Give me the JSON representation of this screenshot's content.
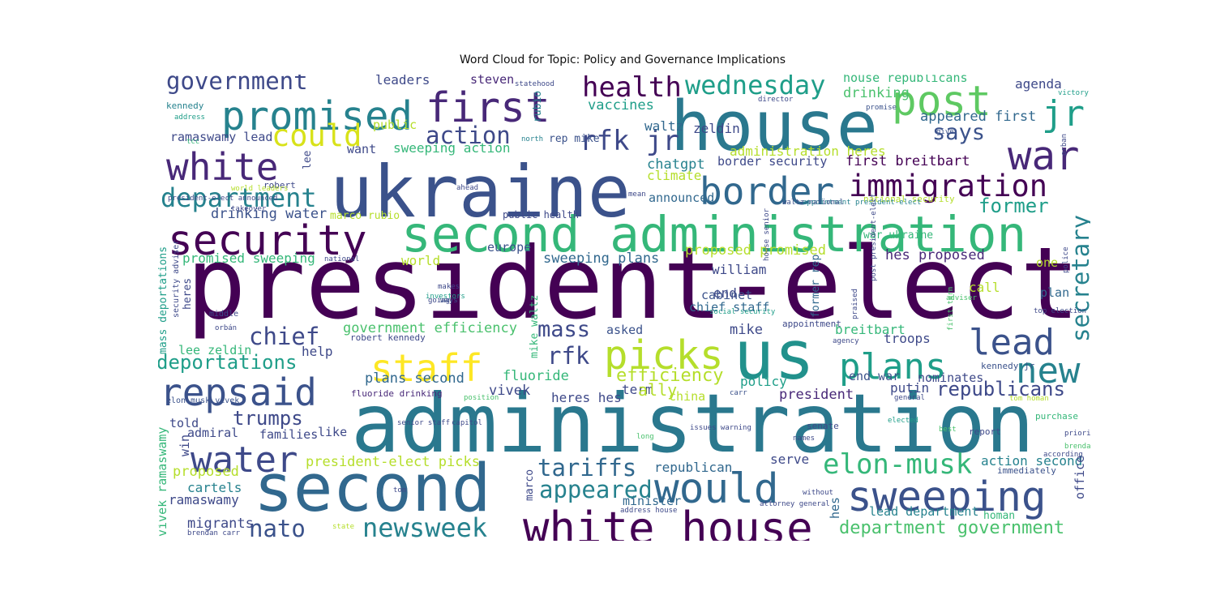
{
  "title": "Word Cloud for Topic: Policy and Governance Implications",
  "chart_data": {
    "type": "wordcloud",
    "title": "Word Cloud for Topic: Policy and Governance Implications",
    "colormap": "viridis",
    "background": "#ffffff",
    "words": [
      {
        "text": "president-elect",
        "weight": 100,
        "color": "#440154"
      },
      {
        "text": "administration",
        "weight": 82,
        "color": "#2a788e"
      },
      {
        "text": "ukraine",
        "weight": 72,
        "color": "#3b528b"
      },
      {
        "text": "house",
        "weight": 70,
        "color": "#2a788e"
      },
      {
        "text": "us",
        "weight": 68,
        "color": "#21918c"
      },
      {
        "text": "second",
        "weight": 66,
        "color": "#31688e"
      },
      {
        "text": "second administration",
        "weight": 50,
        "color": "#35b779"
      },
      {
        "text": "white house",
        "weight": 44,
        "color": "#440154"
      },
      {
        "text": "sweeping",
        "weight": 42,
        "color": "#3b528b"
      },
      {
        "text": "security",
        "weight": 42,
        "color": "#440154"
      },
      {
        "text": "first",
        "weight": 42,
        "color": "#482878"
      },
      {
        "text": "post",
        "weight": 42,
        "color": "#5ec962"
      },
      {
        "text": "would",
        "weight": 42,
        "color": "#31688e"
      },
      {
        "text": "promised",
        "weight": 40,
        "color": "#26828e"
      },
      {
        "text": "war",
        "weight": 40,
        "color": "#482878"
      },
      {
        "text": "picks",
        "weight": 40,
        "color": "#b5de2b"
      },
      {
        "text": "staff",
        "weight": 38,
        "color": "#fde725"
      },
      {
        "text": "border",
        "weight": 38,
        "color": "#31688e"
      },
      {
        "text": "white",
        "weight": 38,
        "color": "#482878"
      },
      {
        "text": "repsaid",
        "weight": 38,
        "color": "#3b528b"
      },
      {
        "text": "water",
        "weight": 36,
        "color": "#3e4989"
      },
      {
        "text": "plans",
        "weight": 36,
        "color": "#1f9e89"
      },
      {
        "text": "lead",
        "weight": 36,
        "color": "#3b528b"
      },
      {
        "text": "new",
        "weight": 36,
        "color": "#26828e"
      },
      {
        "text": "jr",
        "weight": 36,
        "color": "#1f9e89"
      },
      {
        "text": "immigration",
        "weight": 30,
        "color": "#440154"
      },
      {
        "text": "could",
        "weight": 30,
        "color": "#d8e219"
      },
      {
        "text": "elon-musk",
        "weight": 28,
        "color": "#35b779"
      },
      {
        "text": "health",
        "weight": 28,
        "color": "#440154"
      },
      {
        "text": "rfk jr",
        "weight": 28,
        "color": "#3e4989"
      },
      {
        "text": "wednesday",
        "weight": 26,
        "color": "#1f9e89"
      },
      {
        "text": "department",
        "weight": 26,
        "color": "#26828e"
      },
      {
        "text": "government",
        "weight": 24,
        "color": "#3e4989"
      },
      {
        "text": "action",
        "weight": 24,
        "color": "#3e4989"
      },
      {
        "text": "says",
        "weight": 22,
        "color": "#3b528b"
      },
      {
        "text": "chief",
        "weight": 24,
        "color": "#3e4989"
      },
      {
        "text": "rfk",
        "weight": 24,
        "color": "#3e4989"
      },
      {
        "text": "mass",
        "weight": 22,
        "color": "#3e4989"
      },
      {
        "text": "tariffs",
        "weight": 24,
        "color": "#31688e"
      },
      {
        "text": "appeared",
        "weight": 24,
        "color": "#26828e"
      },
      {
        "text": "nato",
        "weight": 24,
        "color": "#3b528b"
      },
      {
        "text": "newsweek",
        "weight": 26,
        "color": "#26828e"
      },
      {
        "text": "trumps",
        "weight": 20,
        "color": "#3e4989"
      },
      {
        "text": "deportations",
        "weight": 20,
        "color": "#1f9e89"
      },
      {
        "text": "republicans",
        "weight": 20,
        "color": "#3e4989"
      },
      {
        "text": "secretary",
        "weight": 24,
        "color": "#26828e"
      },
      {
        "text": "former",
        "weight": 20,
        "color": "#1f9e89"
      },
      {
        "text": "efficiency",
        "weight": 18,
        "color": "#b5de2b"
      },
      {
        "text": "department government",
        "weight": 18,
        "color": "#4ac16d"
      },
      {
        "text": "president-elect picks",
        "weight": 14,
        "color": "#b5de2b"
      },
      {
        "text": "plans second",
        "weight": 14,
        "color": "#31688e"
      },
      {
        "text": "drinking water",
        "weight": 14,
        "color": "#3b528b"
      },
      {
        "text": "government efficiency",
        "weight": 14,
        "color": "#4ac16d"
      },
      {
        "text": "proposed promised",
        "weight": 14,
        "color": "#b5de2b"
      },
      {
        "text": "sweeping plans",
        "weight": 14,
        "color": "#31688e"
      },
      {
        "text": "hes proposed",
        "weight": 14,
        "color": "#482878"
      },
      {
        "text": "chief staff",
        "weight": 12,
        "color": "#31688e"
      },
      {
        "text": "border security",
        "weight": 12,
        "color": "#3e4989"
      },
      {
        "text": "first breitbart",
        "weight": 14,
        "color": "#440154"
      },
      {
        "text": "administration heres",
        "weight": 13,
        "color": "#b5de2b"
      },
      {
        "text": "appeared first",
        "weight": 14,
        "color": "#31688e"
      },
      {
        "text": "house republicans",
        "weight": 12,
        "color": "#35b779"
      },
      {
        "text": "sweeping action",
        "weight": 13,
        "color": "#35b779"
      },
      {
        "text": "promised sweeping",
        "weight": 13,
        "color": "#35b779"
      },
      {
        "text": "ramaswamy lead",
        "weight": 12,
        "color": "#3e4989"
      },
      {
        "text": "vivek ramaswamy",
        "weight": 12,
        "color": "#35b779"
      },
      {
        "text": "mass deportations",
        "weight": 11,
        "color": "#1f9e89"
      },
      {
        "text": "lee zeldin",
        "weight": 12,
        "color": "#35b779"
      },
      {
        "text": "action second",
        "weight": 13,
        "color": "#26828e"
      },
      {
        "text": "lead department",
        "weight": 12,
        "color": "#26828e"
      },
      {
        "text": "end war",
        "weight": 12,
        "color": "#3b528b"
      },
      {
        "text": "war ukraine",
        "weight": 11,
        "color": "#35b779"
      },
      {
        "text": "marco rubio",
        "weight": 11,
        "color": "#b5de2b"
      },
      {
        "text": "public health",
        "weight": 10,
        "color": "#3e4989"
      },
      {
        "text": "rep mike",
        "weight": 11,
        "color": "#3b528b"
      },
      {
        "text": "former rep",
        "weight": 11,
        "color": "#31688e"
      },
      {
        "text": "robert kennedy",
        "weight": 9,
        "color": "#3e4989"
      },
      {
        "text": "kennedy jr",
        "weight": 9,
        "color": "#3b528b"
      },
      {
        "text": "mike waltz",
        "weight": 11,
        "color": "#35b779"
      },
      {
        "text": "heres hes",
        "weight": 13,
        "color": "#3e4989"
      },
      {
        "text": "fluoride drinking",
        "weight": 9,
        "color": "#482878"
      },
      {
        "text": "elon-musk vivek",
        "weight": 8,
        "color": "#3b528b"
      },
      {
        "text": "vaccines",
        "weight": 14,
        "color": "#1f9e89"
      },
      {
        "text": "drinking",
        "weight": 14,
        "color": "#4ac16d"
      },
      {
        "text": "agenda",
        "weight": 13,
        "color": "#3e4989"
      },
      {
        "text": "leaders",
        "weight": 13,
        "color": "#3e4989"
      },
      {
        "text": "steven",
        "weight": 12,
        "color": "#482878"
      },
      {
        "text": "waltz",
        "weight": 13,
        "color": "#31688e"
      },
      {
        "text": "zeldin",
        "weight": 13,
        "color": "#3e4989"
      },
      {
        "text": "chatgpt",
        "weight": 14,
        "color": "#26828e"
      },
      {
        "text": "climate",
        "weight": 13,
        "color": "#b5de2b"
      },
      {
        "text": "announced",
        "weight": 12,
        "color": "#31688e"
      },
      {
        "text": "want",
        "weight": 12,
        "color": "#3e4989"
      },
      {
        "text": "public",
        "weight": 12,
        "color": "#b5de2b"
      },
      {
        "text": "rubio",
        "weight": 11,
        "color": "#26828e"
      },
      {
        "text": "europe",
        "weight": 12,
        "color": "#3b528b"
      },
      {
        "text": "world",
        "weight": 13,
        "color": "#b5de2b"
      },
      {
        "text": "william",
        "weight": 13,
        "color": "#3e4989"
      },
      {
        "text": "cabinet",
        "weight": 12,
        "color": "#3b528b"
      },
      {
        "text": "mike",
        "weight": 14,
        "color": "#3e4989"
      },
      {
        "text": "asked",
        "weight": 12,
        "color": "#3b528b"
      },
      {
        "text": "breitbart",
        "weight": 13,
        "color": "#35b779"
      },
      {
        "text": "troops",
        "weight": 13,
        "color": "#3e4989"
      },
      {
        "text": "fluoride",
        "weight": 14,
        "color": "#35b779"
      },
      {
        "text": "vivek",
        "weight": 14,
        "color": "#3e4989"
      },
      {
        "text": "term",
        "weight": 13,
        "color": "#3e4989"
      },
      {
        "text": "ally",
        "weight": 16,
        "color": "#b5de2b"
      },
      {
        "text": "policy",
        "weight": 13,
        "color": "#1f9e89"
      },
      {
        "text": "china",
        "weight": 12,
        "color": "#b5de2b"
      },
      {
        "text": "president",
        "weight": 14,
        "color": "#482878"
      },
      {
        "text": "putin",
        "weight": 13,
        "color": "#3e4989"
      },
      {
        "text": "nominates",
        "weight": 12,
        "color": "#3e4989"
      },
      {
        "text": "republican",
        "weight": 13,
        "color": "#31688e"
      },
      {
        "text": "serve",
        "weight": 13,
        "color": "#3e4989"
      },
      {
        "text": "minister",
        "weight": 12,
        "color": "#31688e"
      },
      {
        "text": "admiral",
        "weight": 12,
        "color": "#3e4989"
      },
      {
        "text": "families",
        "weight": 12,
        "color": "#3e4989"
      },
      {
        "text": "like",
        "weight": 12,
        "color": "#3e4989"
      },
      {
        "text": "told",
        "weight": 12,
        "color": "#3e4989"
      },
      {
        "text": "win",
        "weight": 12,
        "color": "#3e4989"
      },
      {
        "text": "proposed",
        "weight": 14,
        "color": "#b5de2b"
      },
      {
        "text": "cartels",
        "weight": 13,
        "color": "#26828e"
      },
      {
        "text": "ramaswamy",
        "weight": 13,
        "color": "#3e4989"
      },
      {
        "text": "migrants",
        "weight": 14,
        "color": "#3e4989"
      },
      {
        "text": "marco",
        "weight": 11,
        "color": "#3e4989"
      },
      {
        "text": "help",
        "weight": 13,
        "color": "#3e4989"
      },
      {
        "text": "call",
        "weight": 13,
        "color": "#b5de2b"
      },
      {
        "text": "plan",
        "weight": 12,
        "color": "#31688e"
      },
      {
        "text": "one",
        "weight": 12,
        "color": "#b5de2b"
      },
      {
        "text": "homan",
        "weight": 11,
        "color": "#35b779"
      },
      {
        "text": "purchase",
        "weight": 9,
        "color": "#35b779"
      },
      {
        "text": "report",
        "weight": 9,
        "color": "#3e4989"
      },
      {
        "text": "immediately",
        "weight": 9,
        "color": "#3b528b"
      },
      {
        "text": "office",
        "weight": 12,
        "color": "#3e4989"
      },
      {
        "text": "end",
        "weight": 13,
        "color": "#3e4989"
      },
      {
        "text": "hes",
        "weight": 12,
        "color": "#31688e"
      },
      {
        "text": "heres",
        "weight": 11,
        "color": "#3e4989"
      },
      {
        "text": "lee",
        "weight": 11,
        "color": "#3e4989"
      },
      {
        "text": "director",
        "weight": 7,
        "color": "#3e4989"
      },
      {
        "text": "promise",
        "weight": 7,
        "color": "#3b528b"
      },
      {
        "text": "give",
        "weight": 7,
        "color": "#3b528b"
      },
      {
        "text": "victory",
        "weight": 7,
        "color": "#1f9e89"
      },
      {
        "text": "statehood",
        "weight": 7,
        "color": "#3e4989"
      },
      {
        "text": "north",
        "weight": 7,
        "color": "#26828e"
      },
      {
        "text": "kennedy",
        "weight": 9,
        "color": "#26828e"
      },
      {
        "text": "address",
        "weight": 7,
        "color": "#1f9e89"
      },
      {
        "text": "ukraine war",
        "weight": 7,
        "color": "#3e4989"
      },
      {
        "text": "tcc",
        "weight": 7,
        "color": "#35b779"
      },
      {
        "text": "robert",
        "weight": 9,
        "color": "#3e4989"
      },
      {
        "text": "world leaders",
        "weight": 7,
        "color": "#b5de2b"
      },
      {
        "text": "president-elect announced",
        "weight": 7,
        "color": "#3e4989"
      },
      {
        "text": "takeover",
        "weight": 7,
        "color": "#3e4989"
      },
      {
        "text": "security adviser",
        "weight": 8,
        "color": "#3e4989"
      },
      {
        "text": "national",
        "weight": 7,
        "color": "#3e4989"
      },
      {
        "text": "makes",
        "weight": 7,
        "color": "#3e4989"
      },
      {
        "text": "investors",
        "weight": 7,
        "color": "#1f9e89"
      },
      {
        "text": "ways",
        "weight": 7,
        "color": "#3b528b"
      },
      {
        "text": "going",
        "weight": 7,
        "color": "#3e4989"
      },
      {
        "text": "middle",
        "weight": 8,
        "color": "#3e4989"
      },
      {
        "text": "orbán",
        "weight": 7,
        "color": "#3e4989"
      },
      {
        "text": "ahead",
        "weight": 7,
        "color": "#3e4989"
      },
      {
        "text": "national security",
        "weight": 9,
        "color": "#b5de2b"
      },
      {
        "text": "appointment president-elect",
        "weight": 7,
        "color": "#26828e"
      },
      {
        "text": "waltz national",
        "weight": 7,
        "color": "#3b528b"
      },
      {
        "text": "social security",
        "weight": 7,
        "color": "#1f9e89"
      },
      {
        "text": "appointment",
        "weight": 9,
        "color": "#3e4989"
      },
      {
        "text": "agency",
        "weight": 7,
        "color": "#3e4989"
      },
      {
        "text": "adviser",
        "weight": 7,
        "color": "#4ac16d"
      },
      {
        "text": "top election",
        "weight": 7,
        "color": "#3e4989"
      },
      {
        "text": "position",
        "weight": 7,
        "color": "#4ac16d"
      },
      {
        "text": "carr",
        "weight": 7,
        "color": "#3b528b"
      },
      {
        "text": "general",
        "weight": 7,
        "color": "#3e4989"
      },
      {
        "text": "tom homan",
        "weight": 7,
        "color": "#b5de2b"
      },
      {
        "text": "senior staff",
        "weight": 7,
        "color": "#3e4989"
      },
      {
        "text": "capitol",
        "weight": 7,
        "color": "#3e4989"
      },
      {
        "text": "issues warning",
        "weight": 7,
        "color": "#3e4989"
      },
      {
        "text": "senate",
        "weight": 9,
        "color": "#3e4989"
      },
      {
        "text": "elected",
        "weight": 7,
        "color": "#1f9e89"
      },
      {
        "text": "best",
        "weight": 7,
        "color": "#4ac16d"
      },
      {
        "text": "priority",
        "weight": 7,
        "color": "#3e4989"
      },
      {
        "text": "brendan",
        "weight": 7,
        "color": "#4ac16d"
      },
      {
        "text": "according",
        "weight": 7,
        "color": "#3e4989"
      },
      {
        "text": "without",
        "weight": 7,
        "color": "#3e4989"
      },
      {
        "text": "attorney general",
        "weight": 7,
        "color": "#3e4989"
      },
      {
        "text": "address house",
        "weight": 7,
        "color": "#3e4989"
      },
      {
        "text": "brendan carr",
        "weight": 7,
        "color": "#3e4989"
      },
      {
        "text": "tom",
        "weight": 7,
        "color": "#3e4989"
      },
      {
        "text": "long",
        "weight": 7,
        "color": "#4ac16d"
      },
      {
        "text": "names",
        "weight": 7,
        "color": "#3e4989"
      },
      {
        "text": "house senior",
        "weight": 7,
        "color": "#3e4989"
      },
      {
        "text": "post president-elect",
        "weight": 7,
        "color": "#3e4989"
      },
      {
        "text": "police",
        "weight": 7,
        "color": "#3e4989"
      },
      {
        "text": "praised",
        "weight": 7,
        "color": "#3e4989"
      },
      {
        "text": "first term",
        "weight": 7,
        "color": "#4ac16d"
      },
      {
        "text": "orban",
        "weight": 7,
        "color": "#3e4989"
      },
      {
        "text": "mean",
        "weight": 7,
        "color": "#3e4989"
      },
      {
        "text": "state",
        "weight": 7,
        "color": "#b5de2b"
      }
    ]
  }
}
